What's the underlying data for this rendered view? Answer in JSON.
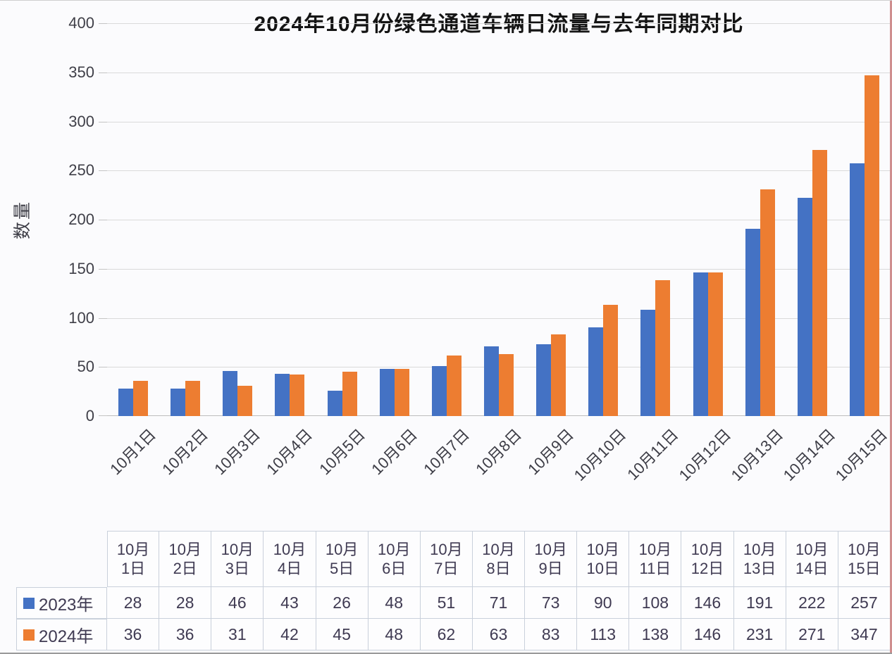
{
  "chart": {
    "title": "2024年10月份绿色通道车辆日流量与去年同期对比",
    "ylabel": "数量"
  },
  "chart_data": {
    "type": "bar",
    "title": "2024年10月份绿色通道车辆日流量与去年同期对比",
    "xlabel": "",
    "ylabel": "数量",
    "categories": [
      "10月1日",
      "10月2日",
      "10月3日",
      "10月4日",
      "10月5日",
      "10月6日",
      "10月7日",
      "10月8日",
      "10月9日",
      "10月10日",
      "10月11日",
      "10月12日",
      "10月13日",
      "10月14日",
      "10月15日"
    ],
    "series": [
      {
        "name": "2023年",
        "color": "#4472C4",
        "values": [
          28,
          28,
          46,
          43,
          26,
          48,
          51,
          71,
          73,
          90,
          108,
          146,
          191,
          222,
          257
        ]
      },
      {
        "name": "2024年",
        "color": "#ED7D31",
        "values": [
          36,
          36,
          31,
          42,
          45,
          48,
          62,
          63,
          83,
          113,
          138,
          146,
          231,
          271,
          347
        ]
      }
    ],
    "ylim": [
      0,
      400
    ],
    "ytick_step": 50,
    "grid": true,
    "legend_position": "data-table-left"
  },
  "table": {
    "header_lines": [
      [
        "10月",
        "1日"
      ],
      [
        "10月",
        "2日"
      ],
      [
        "10月",
        "3日"
      ],
      [
        "10月",
        "4日"
      ],
      [
        "10月",
        "5日"
      ],
      [
        "10月",
        "6日"
      ],
      [
        "10月",
        "7日"
      ],
      [
        "10月",
        "8日"
      ],
      [
        "10月",
        "9日"
      ],
      [
        "10月",
        "10日"
      ],
      [
        "10月",
        "11日"
      ],
      [
        "10月",
        "12日"
      ],
      [
        "10月",
        "13日"
      ],
      [
        "10月",
        "14日"
      ],
      [
        "10月",
        "15日"
      ]
    ]
  },
  "colors": {
    "series_2023": "#4472C4",
    "series_2024": "#ED7D31",
    "gridline": "#dadada",
    "axis_text": "#3f3f48",
    "table_text": "#3f3a52",
    "table_border": "#c9d0db"
  }
}
